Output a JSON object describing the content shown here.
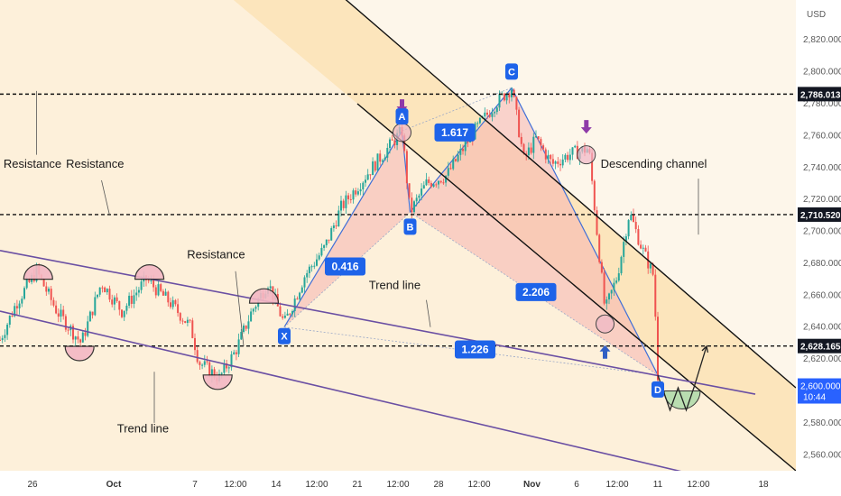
{
  "chart_data": {
    "type": "candlestick",
    "currency": "USD",
    "ylim": [
      2550,
      2845
    ],
    "y_ticks": [
      "2,560.000",
      "2,580.000",
      "2,600.000",
      "2,620.000",
      "2,640.000",
      "2,660.000",
      "2,680.000",
      "2,700.000",
      "2,720.000",
      "2,740.000",
      "2,760.000",
      "2,780.000",
      "2,800.000",
      "2,820.000"
    ],
    "y_tick_values": [
      2560,
      2580,
      2600,
      2620,
      2640,
      2660,
      2680,
      2700,
      2720,
      2740,
      2760,
      2780,
      2800,
      2820
    ],
    "x_ticks": [
      "26",
      "Oct",
      "7",
      "12:00",
      "14",
      "12:00",
      "21",
      "12:00",
      "28",
      "12:00",
      "Nov",
      "6",
      "12:00",
      "11",
      "12:00",
      "18"
    ],
    "x_tick_t": [
      4,
      14,
      24,
      29,
      34,
      39,
      44,
      49,
      54,
      59,
      65.5,
      71,
      76,
      81,
      86,
      94
    ],
    "x_start": 0,
    "x_end": 98,
    "price_labels": [
      {
        "value": 2786.013,
        "text": "2,786.013"
      },
      {
        "value": 2710.52,
        "text": "2,710.520"
      },
      {
        "value": 2628.165,
        "text": "2,628.165"
      }
    ],
    "current_price": {
      "value": 2600,
      "text": "2,600.000",
      "countdown": "10:44"
    },
    "horizontal_levels": [
      2786.013,
      2710.52,
      2628.165
    ],
    "harmonic_points": [
      {
        "label": "X",
        "t": 35,
        "price": 2640
      },
      {
        "label": "A",
        "t": 49.5,
        "price": 2763
      },
      {
        "label": "B",
        "t": 50.5,
        "price": 2712
      },
      {
        "label": "C",
        "t": 63,
        "price": 2790
      },
      {
        "label": "D",
        "t": 81,
        "price": 2610
      }
    ],
    "ratios": [
      {
        "text": "0.416",
        "t": 42.5,
        "price": 2678
      },
      {
        "text": "1.617",
        "t": 56,
        "price": 2762
      },
      {
        "text": "2.206",
        "t": 66,
        "price": 2662
      },
      {
        "text": "1.226",
        "t": 58.5,
        "price": 2626
      }
    ],
    "annotations": [
      {
        "text": "Resistance",
        "t": 4,
        "price": 2740
      },
      {
        "text": "Resistance",
        "t": 11.7,
        "price": 2740
      },
      {
        "text": "Resistance",
        "t": 26.6,
        "price": 2683
      },
      {
        "text": "Trend line",
        "t": 48.6,
        "price": 2664
      },
      {
        "text": "Trend line",
        "t": 17.6,
        "price": 2574
      },
      {
        "text": "Descending channel",
        "t": 80.5,
        "price": 2740
      }
    ],
    "series": [
      {
        "t": 0,
        "price": 2632
      },
      {
        "t": 2,
        "price": 2655
      },
      {
        "t": 4.5,
        "price": 2675
      },
      {
        "t": 7,
        "price": 2650
      },
      {
        "t": 10,
        "price": 2630
      },
      {
        "t": 12.5,
        "price": 2668
      },
      {
        "t": 15,
        "price": 2650
      },
      {
        "t": 18,
        "price": 2670
      },
      {
        "t": 21,
        "price": 2655
      },
      {
        "t": 23.5,
        "price": 2640
      },
      {
        "t": 24.5,
        "price": 2618
      },
      {
        "t": 27,
        "price": 2608
      },
      {
        "t": 29,
        "price": 2625
      },
      {
        "t": 31,
        "price": 2650
      },
      {
        "t": 33,
        "price": 2668
      },
      {
        "t": 35,
        "price": 2642
      },
      {
        "t": 37.5,
        "price": 2672
      },
      {
        "t": 40,
        "price": 2690
      },
      {
        "t": 42,
        "price": 2715
      },
      {
        "t": 45.5,
        "price": 2738
      },
      {
        "t": 49.5,
        "price": 2763
      },
      {
        "t": 50.5,
        "price": 2712
      },
      {
        "t": 52.5,
        "price": 2730
      },
      {
        "t": 55,
        "price": 2735
      },
      {
        "t": 58,
        "price": 2760
      },
      {
        "t": 61,
        "price": 2780
      },
      {
        "t": 63,
        "price": 2790
      },
      {
        "t": 64.5,
        "price": 2745
      },
      {
        "t": 66,
        "price": 2758
      },
      {
        "t": 68,
        "price": 2742
      },
      {
        "t": 70,
        "price": 2748
      },
      {
        "t": 72.5,
        "price": 2752
      },
      {
        "t": 73.5,
        "price": 2700
      },
      {
        "t": 74.5,
        "price": 2650
      },
      {
        "t": 76,
        "price": 2672
      },
      {
        "t": 77.5,
        "price": 2712
      },
      {
        "t": 79,
        "price": 2690
      },
      {
        "t": 80.5,
        "price": 2672
      },
      {
        "t": 81,
        "price": 2610
      }
    ],
    "projection": [
      {
        "t": 81,
        "price": 2610
      },
      {
        "t": 82.5,
        "price": 2588
      },
      {
        "t": 83.5,
        "price": 2602
      },
      {
        "t": 84.5,
        "price": 2588
      },
      {
        "t": 85.5,
        "price": 2603
      },
      {
        "t": 87,
        "price": 2628
      }
    ],
    "channel_upper": {
      "t1": 26,
      "p1": 2918,
      "t2": 98,
      "p2": 2602
    },
    "channel_lower": {
      "t1": 44,
      "p1": 2780,
      "t2": 98,
      "p2": 2550
    },
    "trend_upper": {
      "t1": 0,
      "p1": 2688,
      "t2": 93,
      "p2": 2598
    },
    "trend_lower": {
      "t1": 0,
      "p1": 2650,
      "t2": 91,
      "p2": 2541
    },
    "arcs": [
      {
        "t": 4.7,
        "price": 2670,
        "dir": "up"
      },
      {
        "t": 18.4,
        "price": 2670,
        "dir": "up"
      },
      {
        "t": 32.5,
        "price": 2655,
        "dir": "up"
      },
      {
        "t": 9.8,
        "price": 2628,
        "dir": "down"
      },
      {
        "t": 26.8,
        "price": 2610,
        "dir": "down"
      }
    ],
    "circles": [
      {
        "t": 49.5,
        "price": 2762
      },
      {
        "t": 72.2,
        "price": 2748
      },
      {
        "t": 74.5,
        "price": 2642
      }
    ],
    "arrows_down": [
      {
        "t": 49.5,
        "price": 2776
      },
      {
        "t": 72.2,
        "price": 2763
      }
    ],
    "arrows_up": [
      {
        "t": 74.5,
        "price": 2627
      }
    ],
    "colors": {
      "bull": "#26a69a",
      "bear": "#ef5350",
      "channel_fill": "#fce2b4",
      "label_bg": "#1e63e9",
      "arrow": "#8e3aa8",
      "trend_line": "#6a4fa3",
      "arc_fill": "#f4b8c4",
      "projection_fill": "#b9ddb0"
    }
  }
}
